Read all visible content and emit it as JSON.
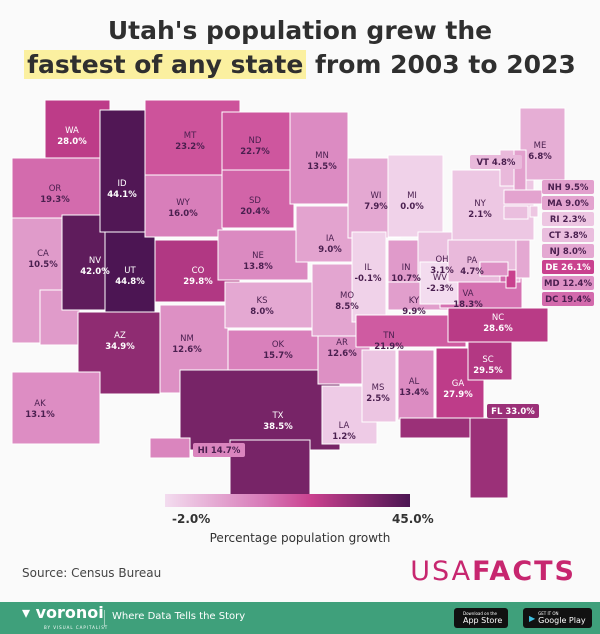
{
  "title": {
    "line1": "Utah's population grew the",
    "highlight": "fastest of any state",
    "line2_rest": " from 2003 to 2023"
  },
  "legend": {
    "min_label": "-2.0%",
    "max_label": "45.0%",
    "title": "Percentage population growth",
    "min": -2.0,
    "max": 45.0,
    "colors": [
      "#f3dcef",
      "#d77ab8",
      "#c9408e",
      "#4b1552"
    ]
  },
  "source": "Source: Census Bureau",
  "brand": {
    "usa": "USA",
    "facts": "FACTS",
    "color": "#c7266f"
  },
  "footer": {
    "logo": "voronoi",
    "logo_sub": "BY VISUAL CAPITALIST",
    "tagline": "Where Data Tells the Story",
    "app_store": "App Store",
    "app_store_small": "Download on the",
    "google_play": "Google Play",
    "google_play_small": "GET IT ON",
    "bg": "#3fa07b"
  },
  "states": [
    {
      "code": "WA",
      "value": 28.0
    },
    {
      "code": "OR",
      "value": 19.3
    },
    {
      "code": "CA",
      "value": 10.5
    },
    {
      "code": "NV",
      "value": 42.0
    },
    {
      "code": "ID",
      "value": 44.1
    },
    {
      "code": "UT",
      "value": 44.8
    },
    {
      "code": "AZ",
      "value": 34.9
    },
    {
      "code": "MT",
      "value": 23.2
    },
    {
      "code": "WY",
      "value": 16.0
    },
    {
      "code": "CO",
      "value": 29.8
    },
    {
      "code": "NM",
      "value": 12.6
    },
    {
      "code": "ND",
      "value": 22.7
    },
    {
      "code": "SD",
      "value": 20.4
    },
    {
      "code": "NE",
      "value": 13.8
    },
    {
      "code": "KS",
      "value": 8.0
    },
    {
      "code": "OK",
      "value": 15.7
    },
    {
      "code": "TX",
      "value": 38.5
    },
    {
      "code": "MN",
      "value": 13.5
    },
    {
      "code": "IA",
      "value": 9.0
    },
    {
      "code": "MO",
      "value": 8.5
    },
    {
      "code": "AR",
      "value": 12.6
    },
    {
      "code": "LA",
      "value": 1.2
    },
    {
      "code": "WI",
      "value": 7.9
    },
    {
      "code": "IL",
      "value": -0.1
    },
    {
      "code": "MI",
      "value": 0.0
    },
    {
      "code": "IN",
      "value": 10.7
    },
    {
      "code": "OH",
      "value": 3.1
    },
    {
      "code": "KY",
      "value": 9.9
    },
    {
      "code": "TN",
      "value": 21.9
    },
    {
      "code": "MS",
      "value": 2.5
    },
    {
      "code": "AL",
      "value": 13.4
    },
    {
      "code": "GA",
      "value": 27.9
    },
    {
      "code": "FL",
      "value": 33.0
    },
    {
      "code": "SC",
      "value": 29.5
    },
    {
      "code": "NC",
      "value": 28.6
    },
    {
      "code": "VA",
      "value": 18.3
    },
    {
      "code": "WV",
      "value": -2.3
    },
    {
      "code": "PA",
      "value": 4.7
    },
    {
      "code": "NY",
      "value": 2.1
    },
    {
      "code": "AK",
      "value": 13.1
    },
    {
      "code": "HI",
      "value": 14.7
    },
    {
      "code": "VT",
      "value": 4.8
    },
    {
      "code": "ME",
      "value": 6.8
    },
    {
      "code": "NH",
      "value": 9.5
    },
    {
      "code": "MA",
      "value": 9.0
    },
    {
      "code": "RI",
      "value": 2.3
    },
    {
      "code": "CT",
      "value": 3.8
    },
    {
      "code": "NJ",
      "value": 8.0
    },
    {
      "code": "DE",
      "value": 26.1
    },
    {
      "code": "MD",
      "value": 12.4
    },
    {
      "code": "DC",
      "value": 19.4
    }
  ]
}
